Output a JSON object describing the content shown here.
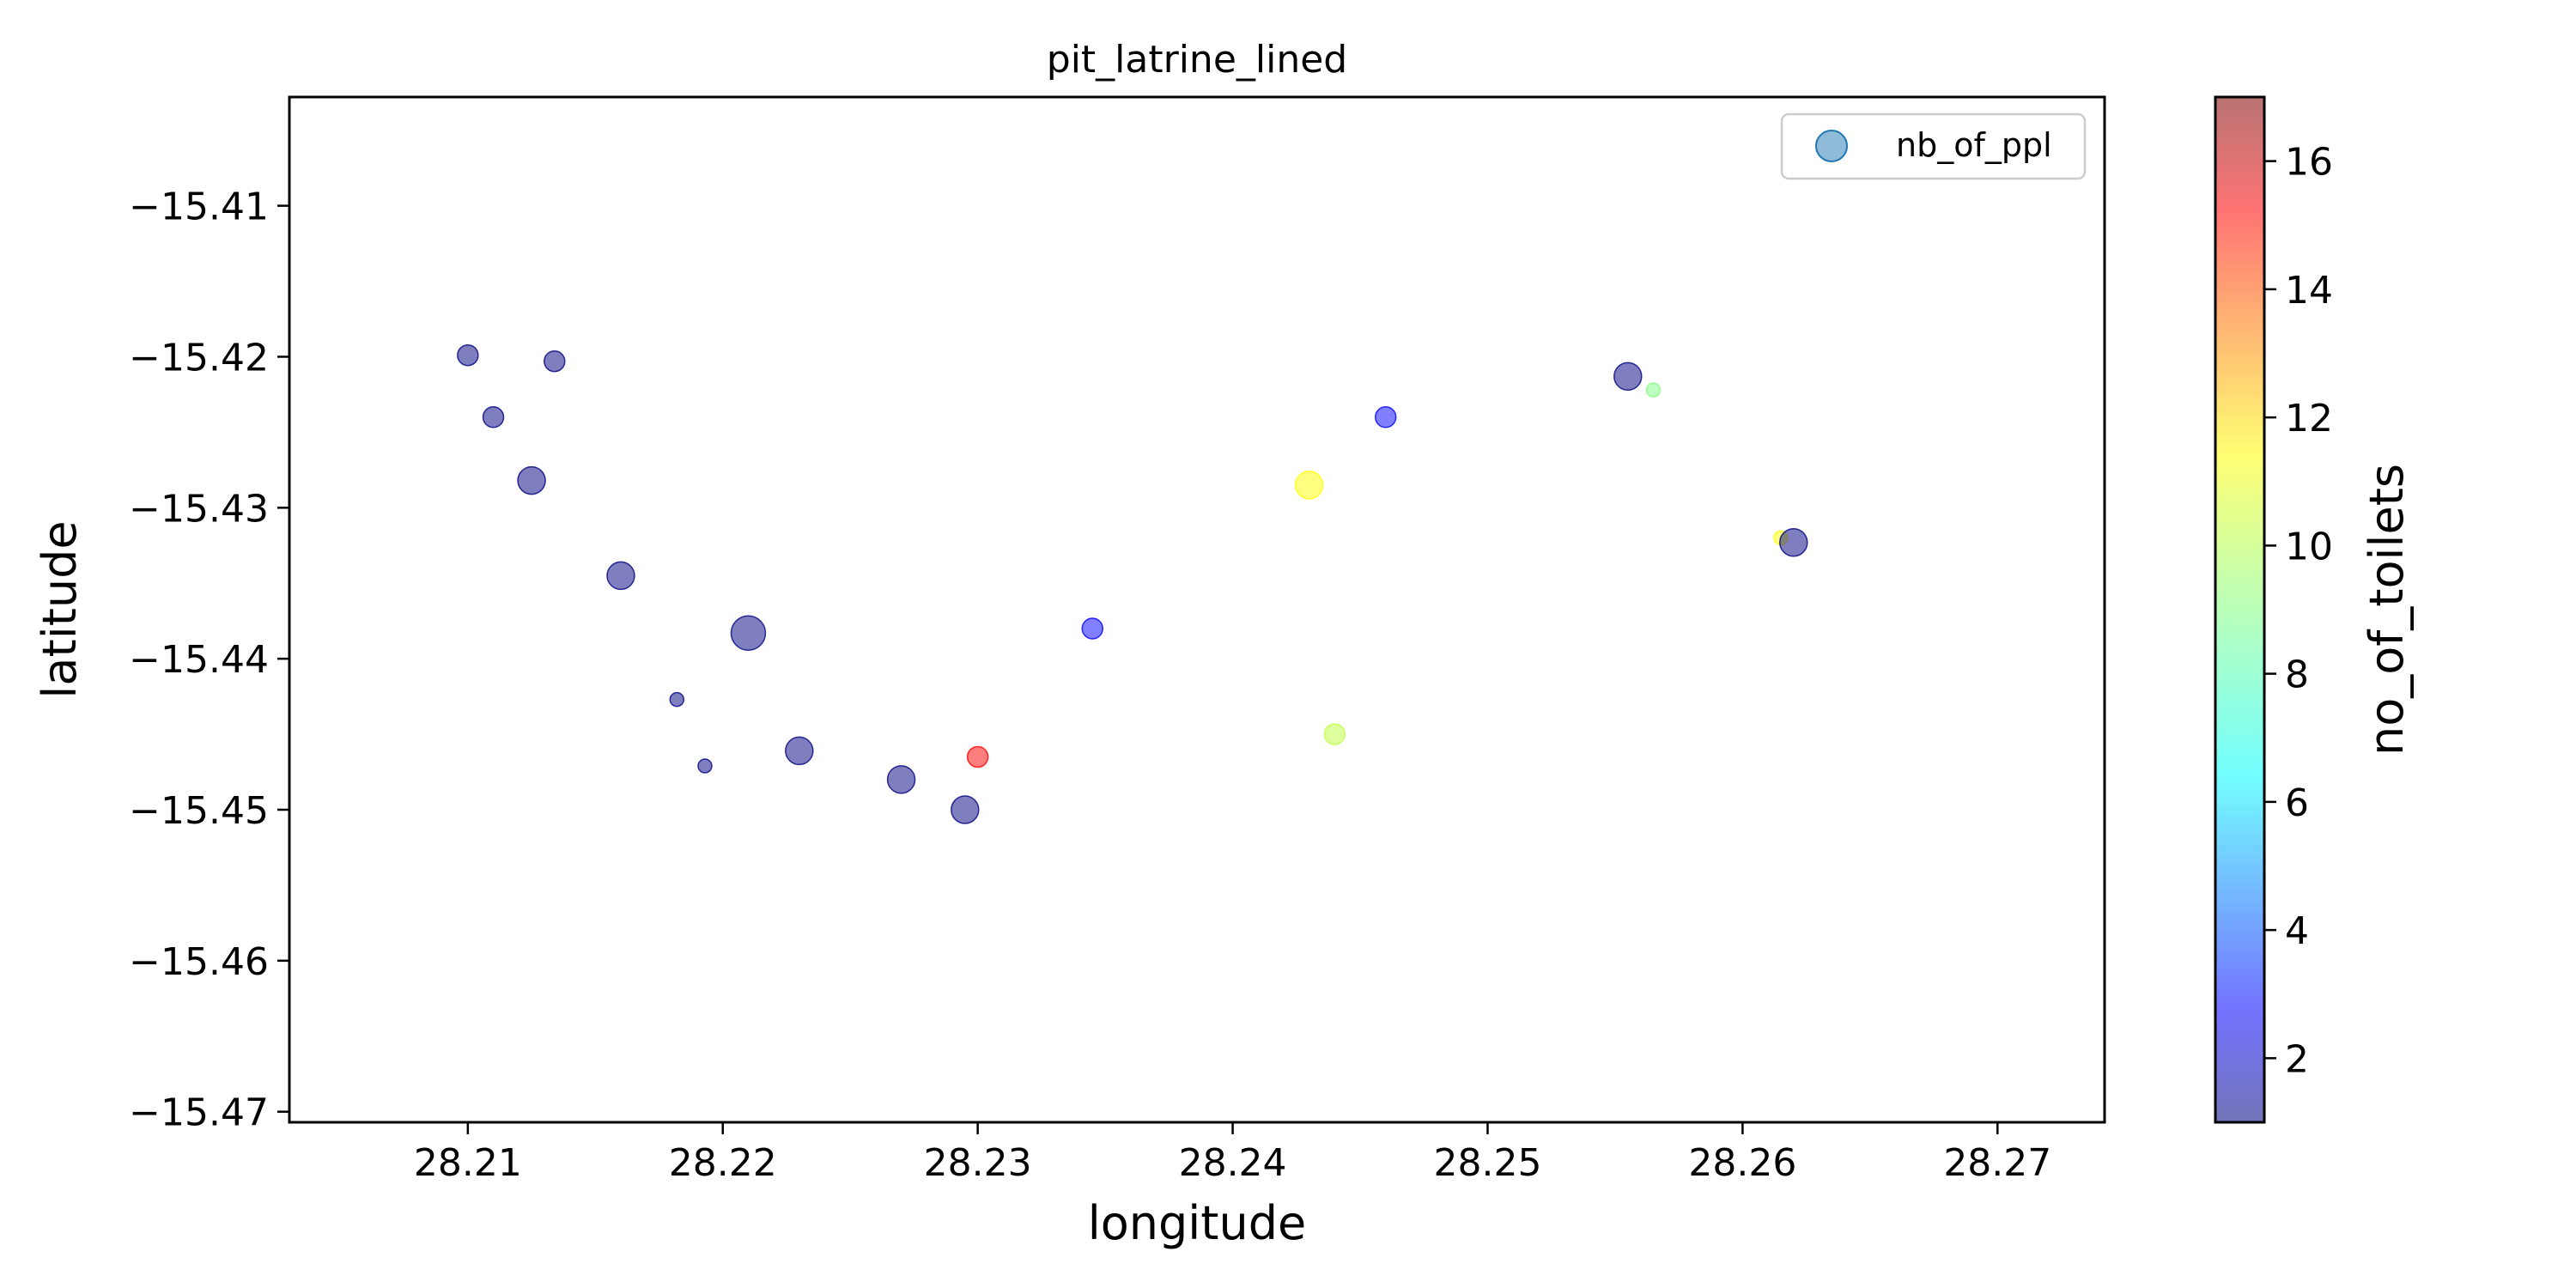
{
  "chart_data": {
    "type": "scatter",
    "title": "pit_latrine_lined",
    "xlabel": "longitude",
    "ylabel": "latitude",
    "xlim": [
      28.203,
      28.2742
    ],
    "ylim": [
      -15.4707,
      -15.4028
    ],
    "xticks": [
      28.21,
      28.22,
      28.23,
      28.24,
      28.25,
      28.26,
      28.27
    ],
    "xtick_labels": [
      "28.21",
      "28.22",
      "28.23",
      "28.24",
      "28.25",
      "28.26",
      "28.27"
    ],
    "yticks": [
      -15.41,
      -15.42,
      -15.43,
      -15.44,
      -15.45,
      -15.46,
      -15.47
    ],
    "ytick_labels": [
      "−15.41",
      "−15.42",
      "−15.43",
      "−15.44",
      "−15.45",
      "−15.46",
      "−15.47"
    ],
    "grid": false,
    "legend": {
      "location": "upper right",
      "entries": [
        "nb_of_ppl"
      ]
    },
    "marker_size_variable": "nb_of_ppl",
    "color_variable": "no_of_toilets",
    "colormap": "jet",
    "marker_alpha": 0.5,
    "colorbar": {
      "label": "no_of_toilets",
      "range": [
        1,
        17
      ],
      "ticks": [
        2,
        4,
        6,
        8,
        10,
        12,
        14,
        16
      ],
      "tick_labels": [
        "2",
        "4",
        "6",
        "8",
        "10",
        "12",
        "14",
        "16"
      ]
    },
    "points": [
      {
        "x": 28.21,
        "y": -15.4199,
        "size": 2,
        "color": 1
      },
      {
        "x": 28.2134,
        "y": -15.4203,
        "size": 2,
        "color": 1
      },
      {
        "x": 28.211,
        "y": -15.424,
        "size": 2,
        "color": 1
      },
      {
        "x": 28.2125,
        "y": -15.4282,
        "size": 3,
        "color": 1
      },
      {
        "x": 28.216,
        "y": -15.4345,
        "size": 3,
        "color": 1
      },
      {
        "x": 28.2182,
        "y": -15.4427,
        "size": 1,
        "color": 1
      },
      {
        "x": 28.2193,
        "y": -15.4471,
        "size": 1,
        "color": 1
      },
      {
        "x": 28.223,
        "y": -15.4461,
        "size": 3,
        "color": 1
      },
      {
        "x": 28.227,
        "y": -15.448,
        "size": 3,
        "color": 1
      },
      {
        "x": 28.23,
        "y": -15.4465,
        "size": 2,
        "color": 15
      },
      {
        "x": 28.2295,
        "y": -15.45,
        "size": 3,
        "color": 1
      },
      {
        "x": 28.243,
        "y": -15.4285,
        "size": 3,
        "color": 11
      },
      {
        "x": 28.244,
        "y": -15.445,
        "size": 2,
        "color": 10
      },
      {
        "x": 28.2615,
        "y": -15.432,
        "size": 1,
        "color": 11
      },
      {
        "x": 28.2565,
        "y": -15.4222,
        "size": 1,
        "color": 9
      },
      {
        "x": 28.262,
        "y": -15.4323,
        "size": 3,
        "color": 1
      },
      {
        "x": 28.221,
        "y": -15.4383,
        "size": 4,
        "color": 1
      },
      {
        "x": 28.2555,
        "y": -15.4213,
        "size": 3,
        "color": 1
      },
      {
        "x": 28.246,
        "y": -15.424,
        "size": 2,
        "color": 3
      },
      {
        "x": 28.2345,
        "y": -15.438,
        "size": 2,
        "color": 3
      }
    ]
  }
}
